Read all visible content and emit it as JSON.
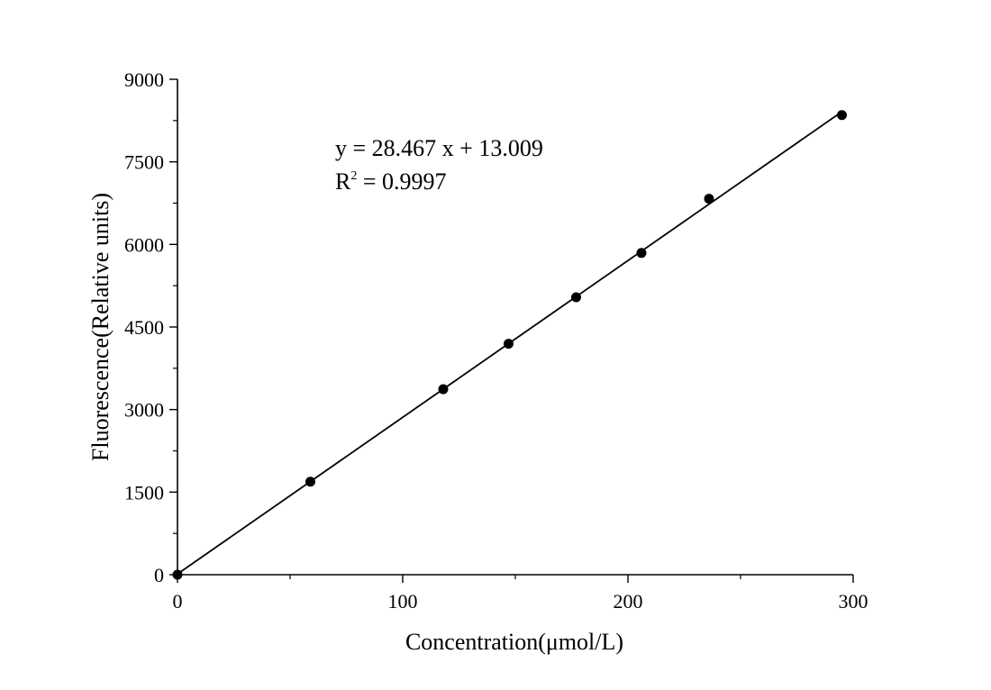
{
  "chart_data": {
    "type": "scatter",
    "xlabel": "Concentration(μmol/L)",
    "ylabel": "Fluorescence(Relative units)",
    "xlim": [
      0,
      300
    ],
    "ylim": [
      0,
      9000
    ],
    "xticks": [
      "0",
      "100",
      "200",
      "300"
    ],
    "yticks": [
      "0",
      "1500",
      "3000",
      "4500",
      "6000",
      "7500",
      "9000"
    ],
    "points": [
      {
        "x": 0,
        "y": 0
      },
      {
        "x": 59,
        "y": 1690
      },
      {
        "x": 118,
        "y": 3370
      },
      {
        "x": 147,
        "y": 4195
      },
      {
        "x": 177,
        "y": 5040
      },
      {
        "x": 206,
        "y": 5845
      },
      {
        "x": 236,
        "y": 6830
      },
      {
        "x": 295,
        "y": 8350
      }
    ],
    "fit": {
      "slope": 28.467,
      "intercept": 13.009,
      "x_range": [
        0,
        295
      ]
    },
    "annotation": {
      "equation": "y = 28.467 x + 13.009",
      "r2_prefix": "R",
      "r2_exponent": "2",
      "r2_value": " = 0.9997"
    },
    "grid": false,
    "legend": "none"
  }
}
